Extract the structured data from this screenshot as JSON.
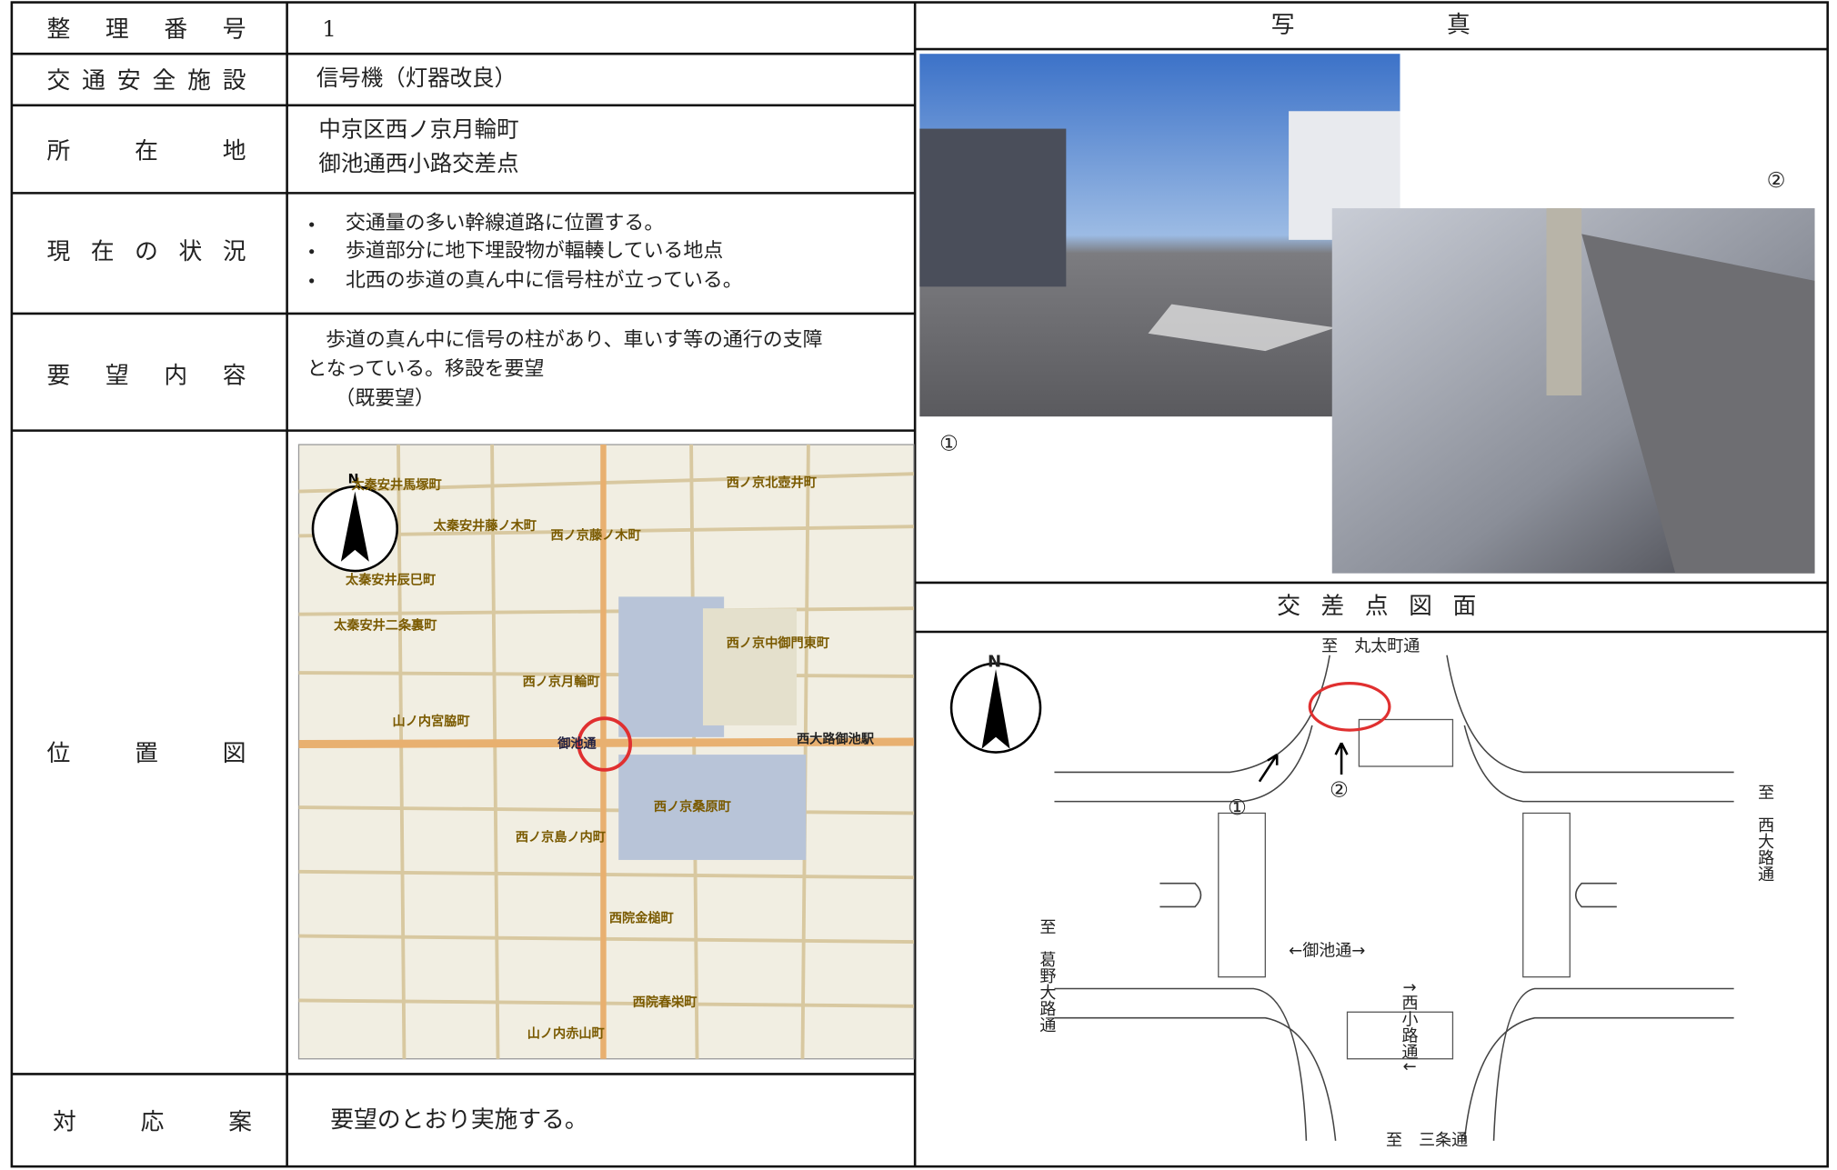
{
  "table": {
    "number_label": "整理番号",
    "number": "1",
    "facility_label": "交通安全施設",
    "facility": "信号機（灯器改良）",
    "location_label": "所在地",
    "location": [
      "中京区西ノ京月輪町",
      "御池通西小路交差点"
    ],
    "status_label": "現在の状況",
    "status": [
      "交通量の多い幹線道路に位置する。",
      "歩道部分に地下埋設物が輻輳している地点",
      "北西の歩道の真ん中に信号柱が立っている。"
    ],
    "request_label": "要望内容",
    "request": [
      "歩道の真ん中に信号の柱があり、車いす等の通行の支障",
      "となっている。移設を要望",
      "（既要望）"
    ],
    "map_label": "位置図",
    "response_label": "対応案",
    "response": "要望のとおり実施する。"
  },
  "photos": {
    "title": "写真",
    "labels": [
      "①",
      "②"
    ]
  },
  "map": {
    "north": "N",
    "places": [
      "太秦安井馬塚町",
      "太秦安井藤ノ木町",
      "西ノ京藤ノ木町",
      "西ノ京北壺井町",
      "太秦安井辰巳町",
      "太秦安井二条裏町",
      "西ノ京月輪町",
      "西ノ京中御門東町",
      "西大路御池駅",
      "御池通",
      "山ノ内宮脇町",
      "西ノ京桑原町",
      "西ノ京島ノ内町",
      "西院金槌町",
      "西院春栄町",
      "山ノ内赤山町"
    ]
  },
  "diagram": {
    "title": "交差点図面",
    "north": "N",
    "north_road": "至　丸太町通",
    "east_road": "至　西大路通",
    "west_road": "至　葛野大路通",
    "main_road": "←御池通→",
    "cross_road": "↑西小路通↓",
    "south_road": "至　三条通",
    "points": [
      "①",
      "②"
    ]
  }
}
